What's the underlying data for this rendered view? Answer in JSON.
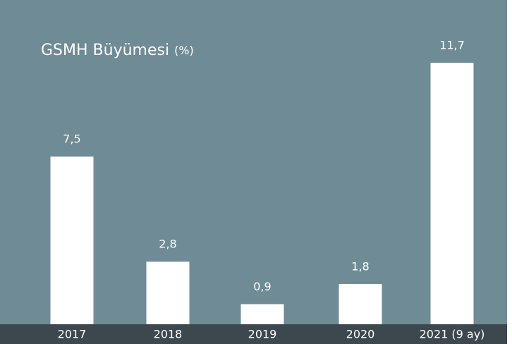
{
  "chart_data": {
    "type": "bar",
    "title": "GSMH Büyümesi",
    "title_unit": "(%)",
    "categories": [
      "2017",
      "2018",
      "2019",
      "2020",
      "2021 (9 ay)"
    ],
    "values": [
      7.5,
      2.8,
      0.9,
      1.8,
      11.7
    ],
    "value_labels": [
      "7,5",
      "2,8",
      "0,9",
      "1,8",
      "11,7"
    ],
    "color": "#ffffff"
  }
}
